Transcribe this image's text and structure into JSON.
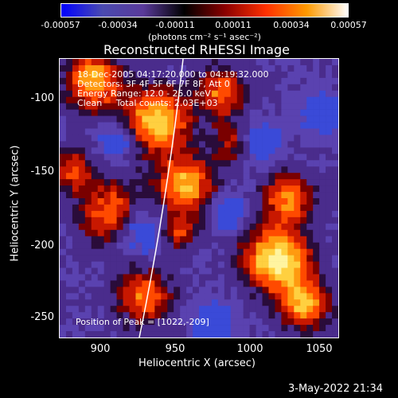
{
  "colorbar": {
    "ticks": [
      "-0.00057",
      "-0.00034",
      "-0.00011",
      "0.00011",
      "0.00034",
      "0.00057"
    ],
    "units": "(photons cm⁻² s⁻¹ asec⁻²)"
  },
  "title": "Reconstructed RHESSI Image",
  "info": {
    "time_range": "18-Dec-2005 04:17:20.000 to 04:19:32.000",
    "detectors": "Detectors: 3F 4F 5F 6F 7F 8F, Att 0",
    "energy": "Energy Range: 12.0 - 25.0 keV",
    "clean": "Clean     Total counts: 2.03E+03",
    "peak": "Position of Peak = [1022,-209]"
  },
  "axes": {
    "xlabel": "Heliocentric X (arcsec)",
    "ylabel": "Heliocentric Y (arcsec)",
    "xticks": [
      "900",
      "950",
      "1000",
      "1050"
    ],
    "yticks": [
      "-100",
      "-150",
      "-200",
      "-250"
    ]
  },
  "datestamp": "3-May-2022 21:34",
  "colors": {
    "colormap": [
      "#0000ff",
      "#4a4ab0",
      "#5a3a9a",
      "#000000",
      "#8a0000",
      "#ff3000",
      "#ff9a00",
      "#ffffff"
    ],
    "limb": "#ffffff"
  }
}
